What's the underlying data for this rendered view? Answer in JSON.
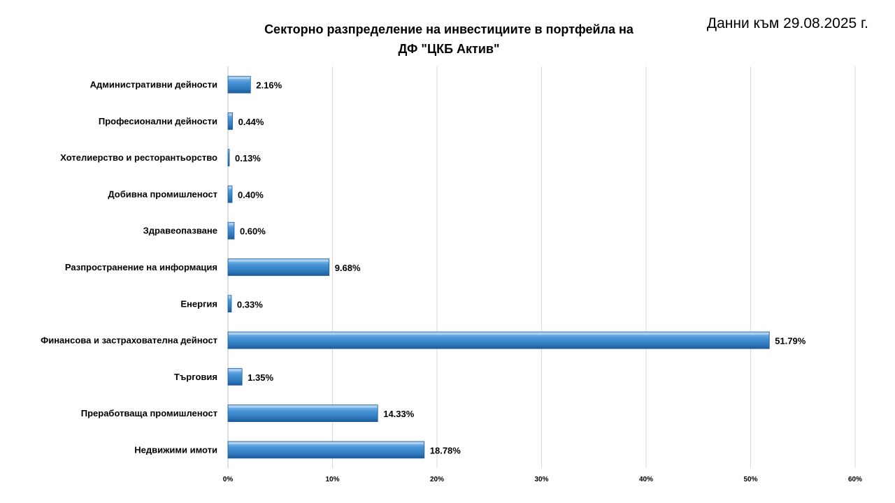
{
  "header": {
    "title_line1": "Секторно разпределение на инвестициите в портфейла на",
    "title_line2": "ДФ \"ЦКБ Актив\"",
    "date_note": "Данни към 29.08.2025 г."
  },
  "chart_data": {
    "type": "bar",
    "orientation": "horizontal",
    "title": "Секторно разпределение на инвестициите в портфейла на ДФ \"ЦКБ Актив\"",
    "xlabel": "",
    "ylabel": "",
    "categories": [
      "Административни дейности",
      "Професионални дейности",
      "Хотелиерство и ресторантьорство",
      "Добивна промишленост",
      "Здравеопазване",
      "Разпространение на информация",
      "Енергия",
      "Финансова и застрахователна дейност",
      "Търговия",
      "Преработваща промишленост",
      "Недвижими имоти"
    ],
    "values": [
      2.16,
      0.44,
      0.13,
      0.4,
      0.6,
      9.68,
      0.33,
      51.79,
      1.35,
      14.33,
      18.78
    ],
    "value_labels": [
      "2.16%",
      "0.44%",
      "0.13%",
      "0.40%",
      "0.60%",
      "9.68%",
      "0.33%",
      "51.79%",
      "1.35%",
      "14.33%",
      "18.78%"
    ],
    "xlim": [
      0,
      60
    ],
    "ticks": [
      0,
      10,
      20,
      30,
      40,
      50,
      60
    ],
    "tick_labels": [
      "0%",
      "10%",
      "20%",
      "30%",
      "40%",
      "50%",
      "60%"
    ],
    "grid": "vertical",
    "legend": "none",
    "bar_color": "#3a86c8"
  }
}
